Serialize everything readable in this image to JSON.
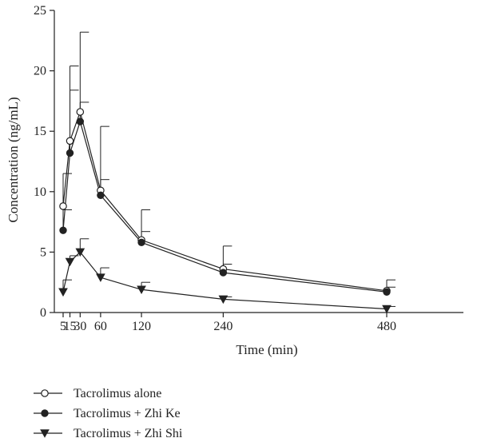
{
  "chart_data": {
    "type": "line",
    "xlabel": "Time (min)",
    "ylabel": "Concentration (ng/mL)",
    "xlim": [
      0,
      480
    ],
    "ylim": [
      0,
      25
    ],
    "x_ticks": [
      5,
      15,
      30,
      60,
      120,
      240,
      480
    ],
    "x_tick_labels": [
      "5",
      "15",
      "30",
      "60",
      "120",
      "240",
      "480"
    ],
    "y_ticks": [
      0,
      5,
      10,
      15,
      20,
      25
    ],
    "y_tick_labels": [
      "0",
      "5",
      "10",
      "15",
      "20",
      "25"
    ],
    "grid": false,
    "legend_position": "bottom-left",
    "x": [
      5,
      15,
      30,
      60,
      120,
      240,
      480
    ],
    "series": [
      {
        "name": "Tacrolimus alone",
        "marker": "open-circle",
        "color": "#222222",
        "values": [
          8.8,
          14.2,
          16.6,
          10.1,
          6.0,
          3.6,
          1.8
        ],
        "error_upper": [
          11.5,
          20.4,
          23.2,
          15.4,
          8.5,
          5.5,
          2.7
        ]
      },
      {
        "name": "Tacrolimus + Zhi Ke",
        "marker": "filled-circle",
        "color": "#222222",
        "values": [
          6.8,
          13.2,
          15.8,
          9.7,
          5.8,
          3.3,
          1.7
        ],
        "error_upper": [
          8.5,
          18.4,
          17.4,
          11.0,
          6.7,
          4.0,
          2.1
        ]
      },
      {
        "name": "Tacrolimus + Zhi Shi",
        "marker": "filled-triangle-down",
        "color": "#222222",
        "values": [
          1.7,
          4.2,
          5.0,
          2.9,
          1.9,
          1.1,
          0.3
        ],
        "error_upper": [
          2.7,
          4.7,
          6.1,
          3.7,
          2.5,
          1.3,
          0.5
        ]
      }
    ]
  }
}
